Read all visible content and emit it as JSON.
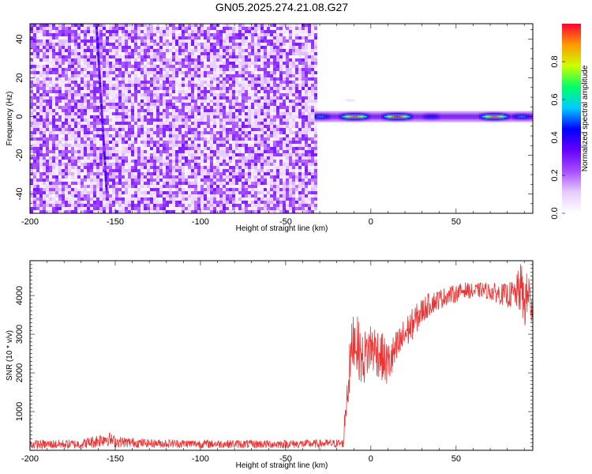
{
  "chart_data": [
    {
      "type": "heatmap",
      "title": "GN05.2025.274.21.08.G27",
      "xlabel": "Height of straight line (km)",
      "ylabel": "Frequency (Hz)",
      "xlim": [
        -200,
        95
      ],
      "ylim": [
        -50,
        48
      ],
      "xticks": [
        -200,
        -150,
        -100,
        -50,
        0,
        50
      ],
      "yticks": [
        -40,
        -20,
        0,
        20,
        40
      ],
      "colorbar": {
        "label": "Normalized spectral amplitude",
        "range": [
          0,
          1
        ],
        "ticks": [
          0.0,
          0.2,
          0.4,
          0.6,
          0.8
        ],
        "tick_labels": [
          "0.0",
          "0.2",
          "0.4",
          "0.6",
          "0.8"
        ],
        "colormap": [
          "#ffffff",
          "#e6ccff",
          "#a64dff",
          "#6600ff",
          "#0000ff",
          "#00ccff",
          "#00ff66",
          "#ccff00",
          "#ff9900",
          "#ff0033"
        ]
      },
      "regions": {
        "noise_x_range": [
          -200,
          -33
        ],
        "noise_level": 0.2,
        "streak": {
          "x_start": -161,
          "y_start": 48,
          "x_end": -155,
          "y_end": -38,
          "level": 0.25
        },
        "signal_x_range": [
          -33,
          95
        ],
        "signal_center_hz": 0,
        "peaks": [
          {
            "x": -30,
            "level": 0.5
          },
          {
            "x": -10,
            "level": 0.95
          },
          {
            "x": 15,
            "level": 1.0
          },
          {
            "x": 35,
            "level": 0.45
          },
          {
            "x": 72,
            "level": 0.95
          },
          {
            "x": 88,
            "level": 0.5
          }
        ]
      }
    },
    {
      "type": "line",
      "xlabel": "Height of straight line (km)",
      "ylabel": "SNR (10 * v/v)",
      "xlim": [
        -200,
        95
      ],
      "ylim": [
        0,
        4900
      ],
      "xticks": [
        -200,
        -150,
        -100,
        -50,
        0,
        50
      ],
      "yticks": [
        1000,
        2000,
        3000,
        4000
      ],
      "color": "#ee3333",
      "series": [
        {
          "x": [
            -200,
            -170,
            -160,
            -155,
            -150,
            -130,
            -100,
            -70,
            -40,
            -20,
            -16,
            -15,
            -12,
            -10,
            -5,
            0,
            5,
            10,
            15,
            20,
            25,
            30,
            35,
            40,
            45,
            50,
            55,
            60,
            65,
            70,
            75,
            80,
            85,
            88,
            90,
            93,
            95
          ],
          "values": [
            150,
            160,
            250,
            320,
            220,
            180,
            170,
            160,
            165,
            175,
            180,
            1000,
            2300,
            3000,
            2300,
            2700,
            2500,
            2200,
            2600,
            3000,
            3300,
            3600,
            3800,
            3900,
            4000,
            4050,
            4150,
            4100,
            4150,
            4100,
            4050,
            4000,
            4050,
            4200,
            3800,
            4100,
            3300
          ],
          "noise_amplitude": [
            120,
            120,
            180,
            200,
            150,
            110,
            110,
            110,
            110,
            110,
            110,
            500,
            700,
            800,
            700,
            700,
            650,
            600,
            500,
            450,
            400,
            350,
            300,
            260,
            240,
            220,
            200,
            200,
            200,
            220,
            260,
            320,
            400,
            700,
            700,
            600,
            500
          ]
        }
      ]
    }
  ]
}
